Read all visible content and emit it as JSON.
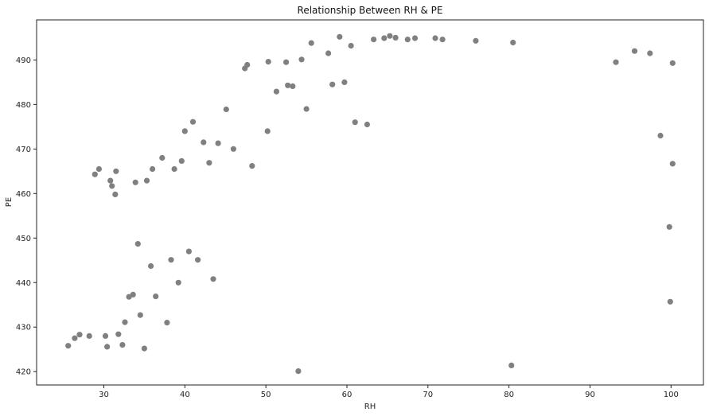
{
  "chart_data": {
    "type": "scatter",
    "title": "Relationship Between RH & PE",
    "xlabel": "RH",
    "ylabel": "PE",
    "xlim": [
      21.7,
      104.0
    ],
    "ylim": [
      417.0,
      499.0
    ],
    "xticks": [
      30,
      40,
      50,
      60,
      70,
      80,
      90,
      100
    ],
    "yticks": [
      420,
      430,
      440,
      450,
      460,
      470,
      480,
      490
    ],
    "grid": false,
    "marker_color": "#808080",
    "series": [
      {
        "values": [
          [
            25.6,
            425.8
          ],
          [
            26.4,
            427.5
          ],
          [
            27.0,
            428.3
          ],
          [
            28.2,
            428.0
          ],
          [
            28.9,
            464.3
          ],
          [
            29.4,
            465.5
          ],
          [
            30.2,
            428.0
          ],
          [
            30.4,
            425.6
          ],
          [
            30.8,
            462.9
          ],
          [
            31.0,
            461.7
          ],
          [
            31.4,
            459.8
          ],
          [
            31.5,
            465.0
          ],
          [
            31.8,
            428.4
          ],
          [
            32.3,
            426.0
          ],
          [
            32.6,
            431.1
          ],
          [
            33.1,
            436.8
          ],
          [
            33.6,
            437.3
          ],
          [
            33.9,
            462.5
          ],
          [
            34.2,
            448.7
          ],
          [
            34.5,
            432.7
          ],
          [
            35.0,
            425.2
          ],
          [
            35.3,
            462.9
          ],
          [
            35.8,
            443.7
          ],
          [
            36.0,
            465.5
          ],
          [
            36.4,
            436.9
          ],
          [
            37.2,
            468.0
          ],
          [
            37.8,
            431.0
          ],
          [
            38.3,
            445.1
          ],
          [
            38.7,
            465.5
          ],
          [
            39.2,
            440.0
          ],
          [
            39.6,
            467.3
          ],
          [
            40.0,
            474.0
          ],
          [
            40.5,
            447.0
          ],
          [
            41.0,
            476.1
          ],
          [
            41.6,
            445.1
          ],
          [
            42.3,
            471.5
          ],
          [
            43.0,
            466.9
          ],
          [
            43.5,
            440.8
          ],
          [
            44.1,
            471.3
          ],
          [
            45.1,
            478.9
          ],
          [
            46.0,
            470.0
          ],
          [
            47.4,
            488.1
          ],
          [
            47.7,
            488.9
          ],
          [
            48.3,
            466.2
          ],
          [
            50.2,
            474.0
          ],
          [
            50.3,
            489.6
          ],
          [
            51.3,
            482.9
          ],
          [
            52.5,
            489.5
          ],
          [
            52.7,
            484.3
          ],
          [
            53.3,
            484.1
          ],
          [
            54.0,
            420.1
          ],
          [
            54.4,
            490.1
          ],
          [
            55.0,
            479.0
          ],
          [
            55.6,
            493.8
          ],
          [
            57.7,
            491.5
          ],
          [
            58.2,
            484.5
          ],
          [
            59.1,
            495.2
          ],
          [
            59.7,
            485.0
          ],
          [
            60.5,
            493.2
          ],
          [
            61.0,
            476.0
          ],
          [
            62.5,
            475.5
          ],
          [
            63.3,
            494.6
          ],
          [
            64.6,
            494.9
          ],
          [
            65.3,
            495.4
          ],
          [
            66.0,
            495.0
          ],
          [
            67.5,
            494.6
          ],
          [
            68.4,
            494.9
          ],
          [
            70.9,
            494.9
          ],
          [
            71.8,
            494.6
          ],
          [
            75.9,
            494.3
          ],
          [
            80.3,
            421.4
          ],
          [
            80.5,
            493.9
          ],
          [
            100.2,
            489.3
          ],
          [
            99.9,
            435.7
          ],
          [
            99.8,
            452.5
          ],
          [
            100.2,
            466.7
          ],
          [
            98.7,
            473.0
          ],
          [
            97.4,
            491.5
          ],
          [
            95.5,
            492.0
          ],
          [
            93.2,
            489.5
          ]
        ]
      }
    ]
  }
}
